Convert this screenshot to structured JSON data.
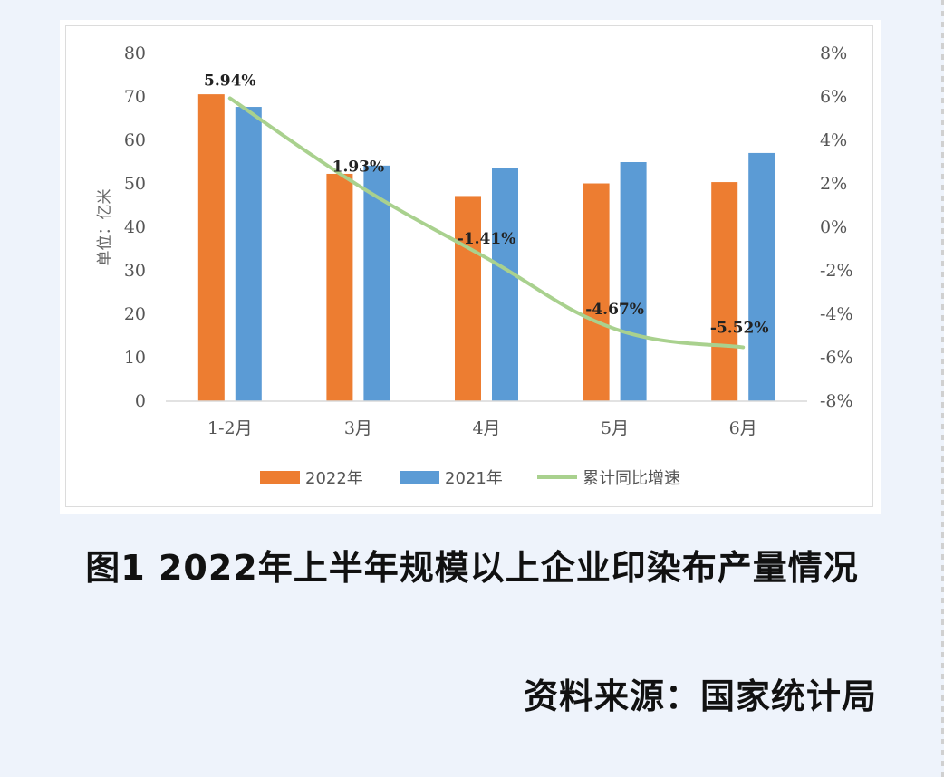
{
  "caption": "图1 2022年上半年规模以上企业印染布产量情况",
  "source": "资料来源：国家统计局",
  "colors": {
    "series_2022": "#ed7d31",
    "series_2021": "#5b9bd5",
    "growth_line": "#a9d18e"
  },
  "chart_data": {
    "type": "bar",
    "categories": [
      "1-2月",
      "3月",
      "4月",
      "5月",
      "6月"
    ],
    "series": [
      {
        "name": "2022年",
        "type": "bar",
        "axis": "left",
        "values": [
          70.6,
          52.3,
          47.2,
          50.1,
          50.4
        ]
      },
      {
        "name": "2021年",
        "type": "bar",
        "axis": "left",
        "values": [
          67.7,
          54.2,
          53.6,
          55.0,
          57.1
        ]
      },
      {
        "name": "累计同比增速",
        "type": "line",
        "axis": "right",
        "values": [
          5.94,
          1.93,
          -1.41,
          -4.67,
          -5.52
        ]
      }
    ],
    "data_labels": [
      "5.94%",
      "1.93%",
      "-1.41%",
      "-4.67%",
      "-5.52%"
    ],
    "ylabel": "单位：亿米",
    "ylim": [
      0,
      80
    ],
    "yticks": [
      "0",
      "10",
      "20",
      "30",
      "40",
      "50",
      "60",
      "70",
      "80"
    ],
    "y2lim": [
      -8,
      8
    ],
    "y2ticks": [
      "-8%",
      "-6%",
      "-4%",
      "-2%",
      "0%",
      "2%",
      "4%",
      "6%",
      "8%"
    ],
    "legend": [
      "2022年",
      "2021年",
      "累计同比增速"
    ],
    "legend_position": "bottom",
    "grid": false
  }
}
